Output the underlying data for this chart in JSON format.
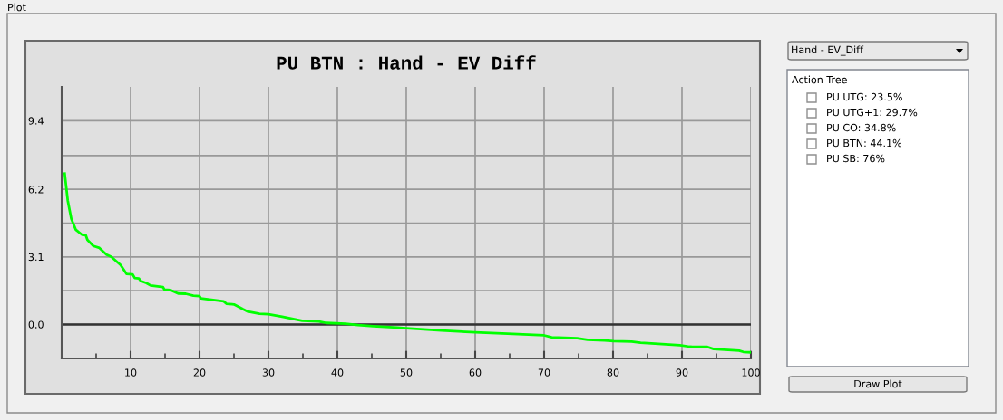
{
  "chart_data": [
    {
      "type": "line",
      "title": "PU BTN : Hand - EV Diff",
      "x": [
        0.44,
        0.88,
        1.4,
        2.06,
        2.98,
        3.5,
        3.73,
        4.6,
        5.48,
        6.5,
        7.2,
        8.55,
        9.4,
        10.3,
        10.6,
        11.2,
        11.5,
        12.3,
        12.9,
        14.7,
        14.9,
        15.8,
        16.9,
        18.0,
        19.1,
        20.0,
        20.2,
        23.5,
        23.9,
        25.0,
        26.3,
        27.0,
        28.7,
        30.0,
        32.0,
        33.6,
        34.9,
        37.3,
        38.4,
        41.2,
        43.0,
        45.2,
        48.7,
        50,
        55.1,
        60,
        64.7,
        70,
        71.1,
        74.8,
        76.3,
        78.8,
        80.1,
        82.7,
        84.0,
        89.7,
        91.1,
        93.7,
        94.6,
        98.3,
        98.9,
        100
      ],
      "series": [
        {
          "color": "#00ff00",
          "values": [
            6.92,
            5.69,
            4.85,
            4.34,
            4.11,
            4.09,
            3.88,
            3.6,
            3.51,
            3.21,
            3.1,
            2.73,
            2.32,
            2.3,
            2.13,
            2.11,
            1.99,
            1.9,
            1.79,
            1.72,
            1.6,
            1.58,
            1.42,
            1.41,
            1.32,
            1.3,
            1.2,
            1.06,
            0.95,
            0.92,
            0.7,
            0.59,
            0.49,
            0.47,
            0.36,
            0.25,
            0.17,
            0.14,
            0.07,
            0.03,
            -0.03,
            -0.08,
            -0.14,
            -0.17,
            -0.28,
            -0.36,
            -0.42,
            -0.5,
            -0.59,
            -0.63,
            -0.7,
            -0.73,
            -0.77,
            -0.79,
            -0.84,
            -0.95,
            -1.02,
            -1.03,
            -1.13,
            -1.2,
            -1.26,
            -1.28
          ]
        }
      ],
      "xlim": [
        0,
        100
      ],
      "xticks": [
        {
          "value": 5,
          "label": null
        },
        10,
        {
          "value": 15,
          "label": null
        },
        20,
        {
          "value": 25,
          "label": null
        },
        30,
        {
          "value": 35,
          "label": null
        },
        40,
        {
          "value": 45,
          "label": null
        },
        50,
        {
          "value": 55,
          "label": null
        },
        60,
        {
          "value": 65,
          "label": null
        },
        70,
        {
          "value": 75,
          "label": null
        },
        80,
        {
          "value": 85,
          "label": null
        },
        90,
        {
          "value": 95,
          "label": null
        },
        100
      ],
      "ylim": [
        -1.56,
        10.9
      ],
      "yticks": [
        {
          "value": 0,
          "label": "0.0"
        },
        {
          "value": 1.55,
          "label": null
        },
        3.1,
        {
          "value": 4.65,
          "label": null
        },
        6.2,
        {
          "value": 7.75,
          "label": null
        },
        {
          "value": 9.35,
          "label": "9.4"
        }
      ],
      "grid": true,
      "ref_lines": [
        {
          "axis": "y",
          "value": 0,
          "color": "#333333"
        }
      ],
      "marker": "none",
      "line_style": "solid"
    },
    {
      "type": "other",
      "annotations": [
        "Plot",
        "Hand - EV_Diff",
        "Action Tree",
        "PU UTG: 23.5%",
        "PU UTG+1: 29.7%",
        "PU CO: 34.8%",
        "PU BTN: 44.1%",
        "PU SB: 76%",
        "Draw Plot"
      ]
    }
  ]
}
